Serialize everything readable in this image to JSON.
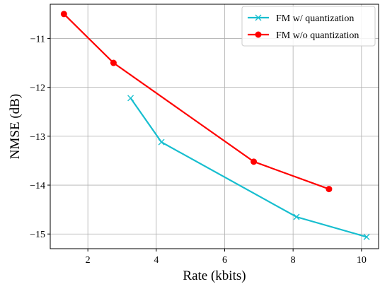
{
  "chart_data": {
    "type": "line",
    "title": "",
    "xlabel": "Rate (kbits)",
    "ylabel": "NMSE (dB)",
    "xlim": [
      0.9,
      10.5
    ],
    "ylim": [
      -15.3,
      -10.3
    ],
    "xticks": [
      2,
      4,
      6,
      8,
      10
    ],
    "xtick_labels": [
      "2",
      "4",
      "6",
      "8",
      "10"
    ],
    "yticks": [
      -11,
      -12,
      -13,
      -14,
      -15
    ],
    "ytick_labels": [
      "−11",
      "−12",
      "−13",
      "−14",
      "−15"
    ],
    "grid": true,
    "legend_position": "top-right",
    "series": [
      {
        "name": "FM w/ quantization",
        "color": "#17becf",
        "marker": "x",
        "x": [
          3.25,
          4.15,
          8.1,
          10.15
        ],
        "y": [
          -12.22,
          -13.12,
          -14.65,
          -15.06
        ]
      },
      {
        "name": "FM w/o quantization",
        "color": "#ff0000",
        "marker": "circle",
        "x": [
          1.3,
          2.75,
          6.85,
          9.05
        ],
        "y": [
          -10.5,
          -11.5,
          -13.52,
          -14.08
        ]
      }
    ]
  }
}
